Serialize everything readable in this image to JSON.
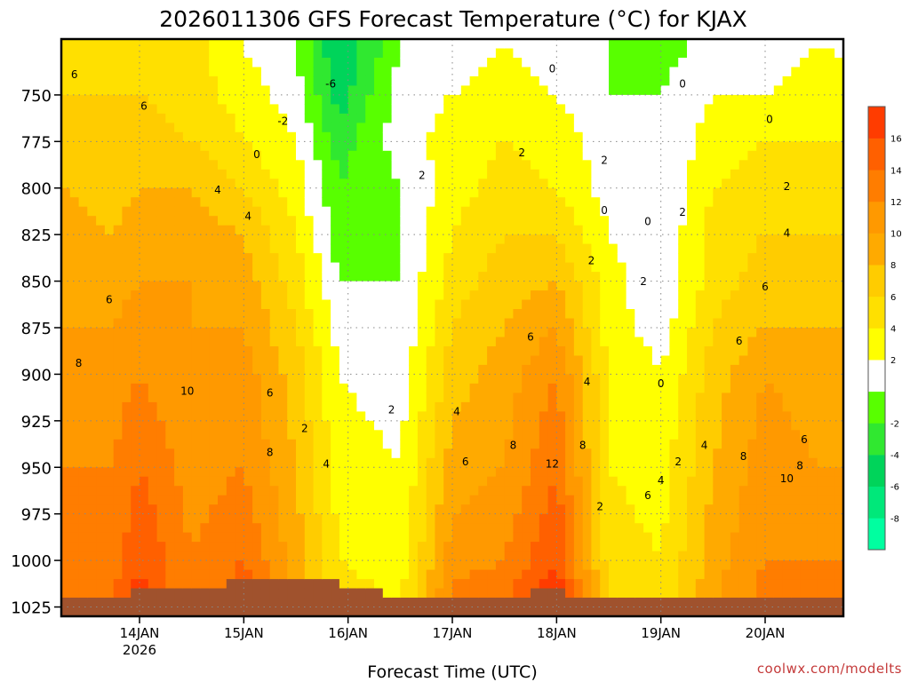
{
  "chart_data": {
    "type": "heatmap",
    "title": "2026011306 GFS Forecast Temperature (°C) for KJAX",
    "xlabel": "Forecast Time (UTC)",
    "ylabel": "",
    "credit": "coolwx.com/modelts",
    "y_scale": "pressure (hPa), decreasing upward",
    "ylim": [
      1030,
      720
    ],
    "y_ticks": [
      750,
      775,
      800,
      825,
      850,
      875,
      900,
      925,
      950,
      975,
      1000,
      1025
    ],
    "y_tick_labels": [
      "750",
      "775",
      "800",
      "825",
      "850",
      "875",
      "900",
      "925",
      "950",
      "975",
      "1000",
      "1025"
    ],
    "x_ticks": [
      {
        "label": "14JAN",
        "sublabel": "2026",
        "t": 18
      },
      {
        "label": "15JAN",
        "sublabel": "",
        "t": 42
      },
      {
        "label": "16JAN",
        "sublabel": "",
        "t": 66
      },
      {
        "label": "17JAN",
        "sublabel": "",
        "t": 90
      },
      {
        "label": "18JAN",
        "sublabel": "",
        "t": 114
      },
      {
        "label": "19JAN",
        "sublabel": "",
        "t": 138
      },
      {
        "label": "20JAN",
        "sublabel": "",
        "t": 162
      }
    ],
    "xlim": [
      0,
      180
    ],
    "grid": true,
    "colorbar": {
      "levels": [
        -10,
        -8,
        -6,
        -4,
        -2,
        0,
        2,
        4,
        6,
        8,
        10,
        12,
        14,
        16,
        18
      ],
      "tick_labels": [
        "-8",
        "-6",
        "-4",
        "-2",
        "2",
        "4",
        "6",
        "8",
        "10",
        "12",
        "14",
        "16"
      ],
      "tick_values": [
        -8,
        -6,
        -4,
        -2,
        2,
        4,
        6,
        8,
        10,
        12,
        14,
        16
      ],
      "colors": [
        "#00ffa0",
        "#00e87a",
        "#00d45a",
        "#30e830",
        "#58ff00",
        "#ffffff",
        "#ffff00",
        "#ffe000",
        "#ffcc00",
        "#ffaa00",
        "#ff9900",
        "#ff7d00",
        "#ff6000",
        "#ff3c00"
      ]
    },
    "contour_labels": [
      {
        "text": "6",
        "t": 19,
        "p": 758
      },
      {
        "text": "6",
        "t": 3,
        "p": 741
      },
      {
        "text": "-6",
        "t": 62,
        "p": 746
      },
      {
        "text": "-2",
        "t": 51,
        "p": 766
      },
      {
        "text": "0",
        "t": 45,
        "p": 784
      },
      {
        "text": "4",
        "t": 36,
        "p": 803
      },
      {
        "text": "4",
        "t": 43,
        "p": 817
      },
      {
        "text": "2",
        "t": 83,
        "p": 795
      },
      {
        "text": "2",
        "t": 106,
        "p": 783
      },
      {
        "text": "0",
        "t": 113,
        "p": 738
      },
      {
        "text": "2",
        "t": 125,
        "p": 787
      },
      {
        "text": "0",
        "t": 143,
        "p": 746
      },
      {
        "text": "0",
        "t": 163,
        "p": 765
      },
      {
        "text": "0",
        "t": 125,
        "p": 814
      },
      {
        "text": "0",
        "t": 135,
        "p": 820
      },
      {
        "text": "2",
        "t": 143,
        "p": 815
      },
      {
        "text": "2",
        "t": 167,
        "p": 801
      },
      {
        "text": "4",
        "t": 167,
        "p": 826
      },
      {
        "text": "2",
        "t": 122,
        "p": 841
      },
      {
        "text": "2",
        "t": 134,
        "p": 852
      },
      {
        "text": "6",
        "t": 11,
        "p": 862
      },
      {
        "text": "6",
        "t": 162,
        "p": 855
      },
      {
        "text": "6",
        "t": 108,
        "p": 882
      },
      {
        "text": "6",
        "t": 156,
        "p": 884
      },
      {
        "text": "8",
        "t": 4,
        "p": 896
      },
      {
        "text": "10",
        "t": 29,
        "p": 911
      },
      {
        "text": "6",
        "t": 48,
        "p": 912
      },
      {
        "text": "4",
        "t": 121,
        "p": 906
      },
      {
        "text": "0",
        "t": 138,
        "p": 907
      },
      {
        "text": "2",
        "t": 76,
        "p": 921
      },
      {
        "text": "4",
        "t": 91,
        "p": 922
      },
      {
        "text": "2",
        "t": 56,
        "p": 931
      },
      {
        "text": "8",
        "t": 48,
        "p": 944
      },
      {
        "text": "8",
        "t": 104,
        "p": 940
      },
      {
        "text": "8",
        "t": 120,
        "p": 940
      },
      {
        "text": "4",
        "t": 148,
        "p": 940
      },
      {
        "text": "6",
        "t": 171,
        "p": 937
      },
      {
        "text": "6",
        "t": 93,
        "p": 949
      },
      {
        "text": "12",
        "t": 113,
        "p": 950
      },
      {
        "text": "2",
        "t": 142,
        "p": 949
      },
      {
        "text": "8",
        "t": 157,
        "p": 946
      },
      {
        "text": "4",
        "t": 61,
        "p": 950
      },
      {
        "text": "8",
        "t": 170,
        "p": 951
      },
      {
        "text": "4",
        "t": 138,
        "p": 959
      },
      {
        "text": "10",
        "t": 167,
        "p": 958
      },
      {
        "text": "6",
        "t": 135,
        "p": 967
      },
      {
        "text": "2",
        "t": 124,
        "p": 973
      }
    ],
    "columns": [
      {
        "t": 0,
        "surface": 1021,
        "temps": [
          6,
          6,
          7,
          8,
          9,
          10,
          10,
          11,
          12,
          13,
          13
        ]
      },
      {
        "t": 12,
        "surface": 1021,
        "temps": [
          5,
          6,
          7,
          7,
          8,
          9,
          10,
          11,
          12,
          13,
          14
        ]
      },
      {
        "t": 18,
        "surface": 1016,
        "temps": [
          6,
          6,
          7,
          8,
          9,
          10,
          11,
          12,
          14,
          16,
          17
        ]
      },
      {
        "t": 30,
        "surface": 1016,
        "temps": [
          5,
          5,
          6,
          8,
          9,
          10,
          10,
          10,
          11,
          12,
          12
        ]
      },
      {
        "t": 42,
        "surface": 1010,
        "temps": [
          2,
          3,
          4,
          6,
          8,
          9,
          10,
          11,
          12,
          14,
          16
        ]
      },
      {
        "t": 54,
        "surface": 1010,
        "temps": [
          0,
          1,
          2,
          3,
          4,
          5,
          6,
          7,
          8,
          9,
          9
        ]
      },
      {
        "t": 64,
        "surface": 1012,
        "temps": [
          -6,
          -5,
          -3,
          -2,
          -1,
          0,
          1,
          2,
          3,
          4,
          5
        ]
      },
      {
        "t": 78,
        "surface": 1020,
        "temps": [
          0,
          1,
          1,
          0,
          0,
          0,
          0,
          1,
          2,
          3,
          4
        ]
      },
      {
        "t": 90,
        "surface": 1021,
        "temps": [
          1,
          2,
          3,
          3,
          4,
          5,
          6,
          7,
          9,
          11,
          13
        ]
      },
      {
        "t": 102,
        "surface": 1018,
        "temps": [
          2,
          3,
          4,
          5,
          6,
          7,
          8,
          9,
          10,
          12,
          14
        ]
      },
      {
        "t": 114,
        "surface": 1017,
        "temps": [
          1,
          2,
          3,
          4,
          6,
          8,
          10,
          12,
          14,
          16,
          18
        ]
      },
      {
        "t": 126,
        "surface": 1021,
        "temps": [
          0,
          0,
          1,
          1,
          2,
          3,
          3,
          4,
          4,
          5,
          6
        ]
      },
      {
        "t": 138,
        "surface": 1021,
        "temps": [
          -1,
          0,
          0,
          0,
          0,
          0,
          1,
          2,
          3,
          4,
          4
        ]
      },
      {
        "t": 150,
        "surface": 1021,
        "temps": [
          1,
          2,
          3,
          4,
          5,
          5,
          6,
          7,
          8,
          9,
          10
        ]
      },
      {
        "t": 162,
        "surface": 1021,
        "temps": [
          1,
          2,
          4,
          5,
          6,
          7,
          8,
          10,
          11,
          12,
          13
        ]
      },
      {
        "t": 174,
        "surface": 1021,
        "temps": [
          2,
          3,
          4,
          5,
          6,
          7,
          8,
          9,
          10,
          12,
          13
        ]
      }
    ],
    "column_levels": [
      725,
      750,
      775,
      800,
      825,
      850,
      875,
      900,
      950,
      1000,
      1025
    ]
  }
}
